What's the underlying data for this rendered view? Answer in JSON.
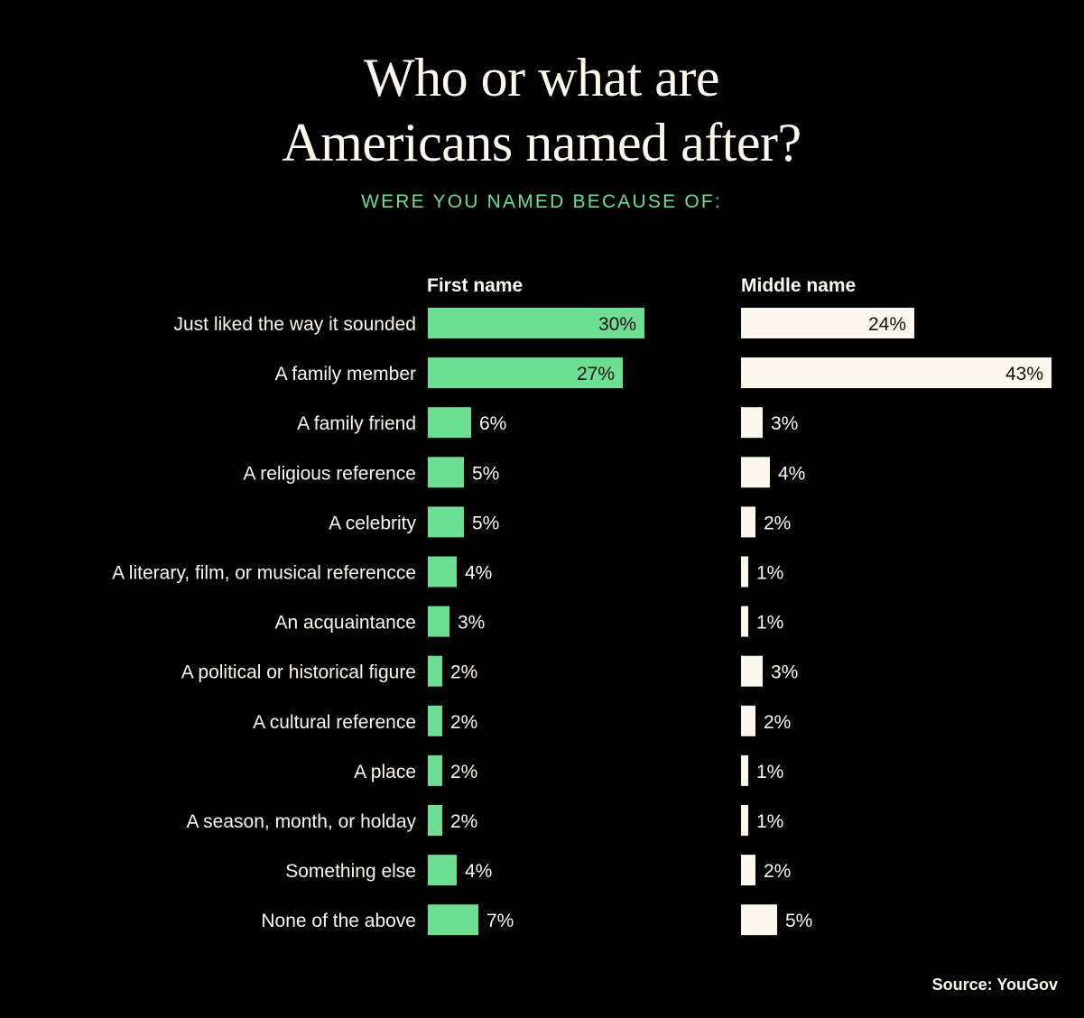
{
  "chart_data": {
    "type": "bar",
    "orientation": "horizontal",
    "title_lines": [
      "Who or what  are",
      "Americans named after?"
    ],
    "subtitle": "WERE YOU NAMED BECAUSE OF:",
    "categories": [
      "Just liked the way it sounded",
      "A family member",
      "A family friend",
      "A religious reference",
      "A celebrity",
      "A literary, film, or musical referencce",
      "An acquaintance",
      "A political or historical figure",
      "A cultural reference",
      "A place",
      "A season, month, or holday",
      "Something else",
      "None of the above"
    ],
    "series": [
      {
        "name": "First name",
        "color": "#6ede92",
        "values": [
          30,
          27,
          6,
          5,
          5,
          4,
          3,
          2,
          2,
          2,
          2,
          4,
          7
        ],
        "labels": [
          "30%",
          "27%",
          "6%",
          "5%",
          "5%",
          "4%",
          "3%",
          "2%",
          "2%",
          "2%",
          "2%",
          "4%",
          "7%"
        ]
      },
      {
        "name": "Middle name",
        "color": "#fdf8ee",
        "values": [
          24,
          43,
          3,
          4,
          2,
          1,
          1,
          3,
          2,
          1,
          1,
          2,
          5
        ],
        "labels": [
          "24%",
          "43%",
          "3%",
          "4%",
          "2%",
          "1%",
          "1%",
          "3%",
          "2%",
          "1%",
          "1%",
          "2%",
          "5%"
        ]
      }
    ],
    "unit": "%",
    "source": "Source: YouGov"
  },
  "colors": {
    "background": "#000000",
    "accent": "#6ede92",
    "cream": "#fdf8ee"
  }
}
